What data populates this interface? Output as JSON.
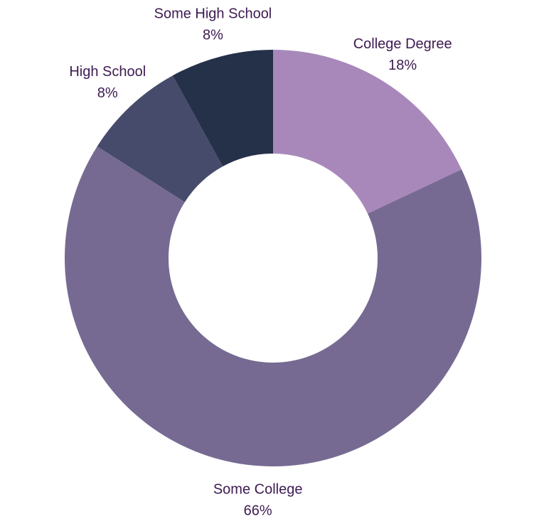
{
  "chart_data": {
    "type": "pie",
    "donut": true,
    "title": "",
    "slices": [
      {
        "label": "College Degree",
        "value": 18,
        "value_label": "18%",
        "color": "#a888ba"
      },
      {
        "label": "Some College",
        "value": 66,
        "value_label": "66%",
        "color": "#776a92"
      },
      {
        "label": "High School",
        "value": 8,
        "value_label": "8%",
        "color": "#474b6b"
      },
      {
        "label": "Some High School",
        "value": 8,
        "value_label": "8%",
        "color": "#253049"
      }
    ],
    "start_angle": "12 o'clock",
    "direction": "clockwise",
    "legend": "none",
    "label_color": "#3d1a52"
  }
}
